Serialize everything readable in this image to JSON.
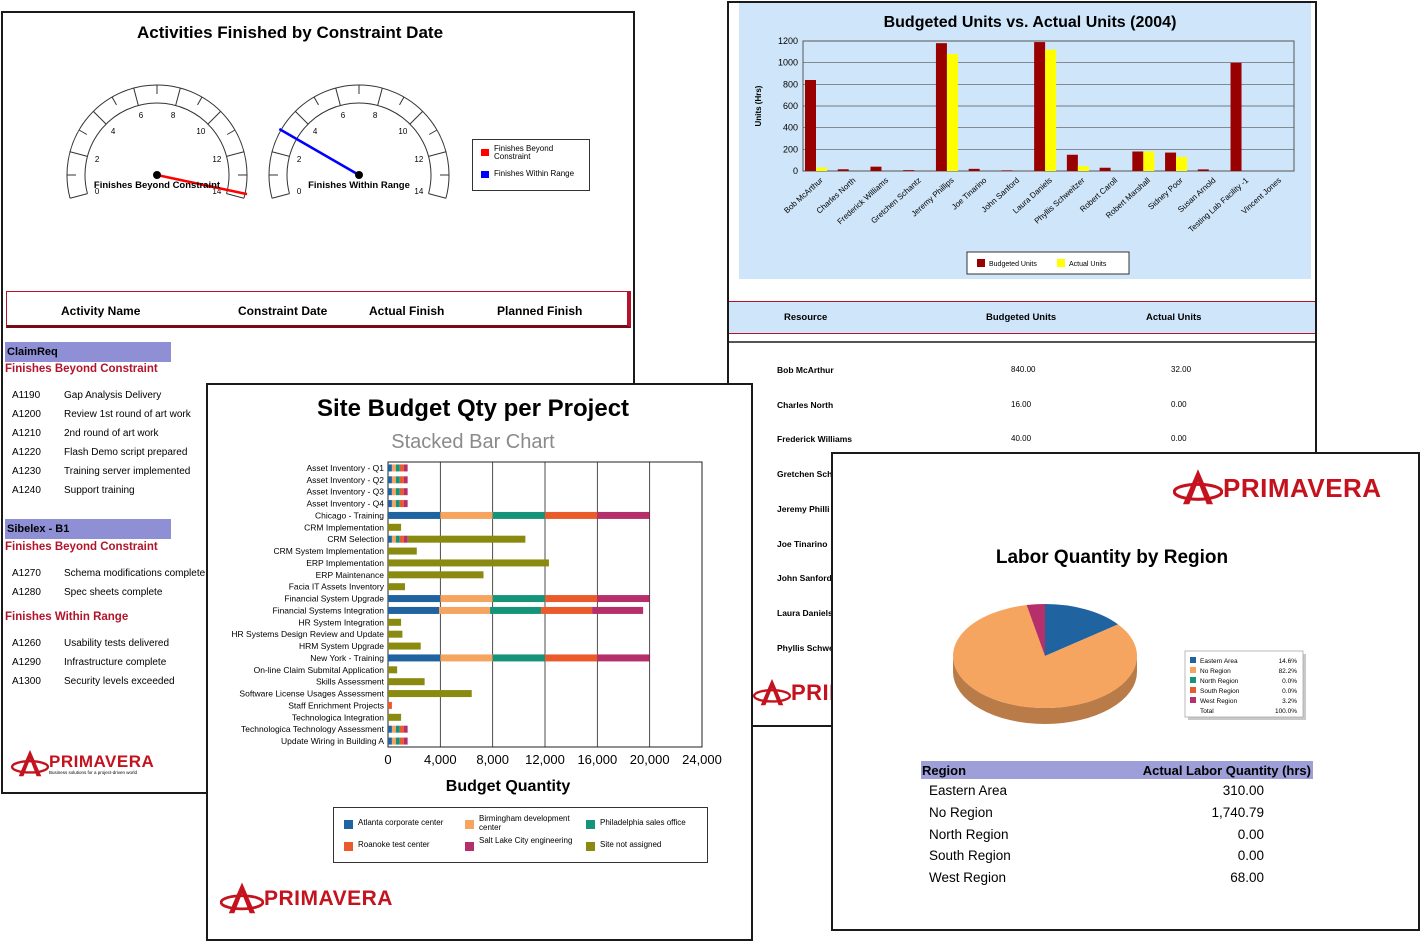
{
  "panel1": {
    "title": "Activities Finished by Constraint Date",
    "gauges": [
      {
        "label": "Finishes Beyond Constraint",
        "ticks": [
          "0",
          "2",
          "4",
          "6",
          "8",
          "10",
          "12",
          "14"
        ],
        "value": 13.8,
        "color": "#ff0000"
      },
      {
        "label": "Finishes Within Range",
        "ticks": [
          "0",
          "2",
          "4",
          "6",
          "8",
          "10",
          "12",
          "14"
        ],
        "value": 3,
        "color": "#0000ff"
      }
    ],
    "legend": [
      {
        "label": "Finishes Beyond Constraint",
        "color": "#ff0000"
      },
      {
        "label": "Finishes Within Range",
        "color": "#0000ff"
      }
    ],
    "headers": [
      "Activity Name",
      "Constraint Date",
      "Actual Finish",
      "Planned Finish"
    ],
    "groups": [
      {
        "name": "ClaimReq",
        "section": "Finishes Beyond Constraint",
        "rows": [
          [
            "A1190",
            "Gap Analysis Delivery"
          ],
          [
            "A1200",
            "Review 1st round of art work"
          ],
          [
            "A1210",
            "2nd round of art work"
          ],
          [
            "A1220",
            "Flash Demo script prepared"
          ],
          [
            "A1230",
            "Training server implemented"
          ],
          [
            "A1240",
            "Support training"
          ]
        ]
      },
      {
        "name": "Sibelex - B1",
        "section": "Finishes Beyond Constraint",
        "rows": [
          [
            "A1270",
            "Schema modifications complete"
          ],
          [
            "A1280",
            "Spec sheets complete"
          ]
        ],
        "section2": "Finishes Within Range",
        "rows2": [
          [
            "A1260",
            "Usability tests delivered"
          ],
          [
            "A1290",
            "Infrastructure complete"
          ],
          [
            "A1300",
            "Security levels exceeded"
          ]
        ]
      }
    ],
    "logo_word": "PRIMAVERA",
    "logo_tagline": "Business solutions for a project-driven world"
  },
  "panel2": {
    "headers": [
      "Resource",
      "Budgeted Units",
      "Actual Units"
    ],
    "rows": [
      [
        "Bob McArthur",
        "840.00",
        "32.00"
      ],
      [
        "Charles North",
        "16.00",
        "0.00"
      ],
      [
        "Frederick Williams",
        "40.00",
        "0.00"
      ],
      [
        "Gretchen Sch",
        "",
        ""
      ],
      [
        "Jeremy Philli",
        "",
        ""
      ],
      [
        "Joe Tinarino",
        "",
        ""
      ],
      [
        "John Sanford",
        "",
        ""
      ],
      [
        "Laura Daniels",
        "",
        ""
      ],
      [
        "Phyllis Schwe",
        "",
        ""
      ]
    ],
    "logo_word": "PRIM"
  },
  "panel3": {
    "logo_word": "PRIMAVERA",
    "region_headers": [
      "Region",
      "Actual Labor Quantity (hrs)"
    ],
    "regions": [
      [
        "Eastern Area",
        "310.00"
      ],
      [
        "No Region",
        "1,740.79"
      ],
      [
        "North Region",
        "0.00"
      ],
      [
        "South Region",
        "0.00"
      ],
      [
        "West Region",
        "68.00"
      ]
    ]
  },
  "panel4": {
    "logo_word": "PRIMAVERA"
  },
  "colors": {
    "brand_red": "#c4121e",
    "header_lightblue": "#cfe6fa",
    "group_purple": "#8f8fd6",
    "region_header": "#9e9ed8",
    "darkred": "#990000",
    "yellow": "#ffff00"
  },
  "chart_data": [
    {
      "type": "bar",
      "title": "Budgeted Units vs. Actual Units (2004)",
      "ylabel": "Units (Hrs)",
      "xlabel": "",
      "ylim": [
        0,
        1200
      ],
      "yticks": [
        0,
        200,
        400,
        600,
        800,
        1000,
        1200
      ],
      "grid": true,
      "legend_position": "bottom",
      "categories": [
        "Bob McArthur",
        "Charles North",
        "Frederick Williams",
        "Gretchen Schantz",
        "Jeremy Phillips",
        "Joe Tinarino",
        "John Sanford",
        "Laura Daniels",
        "Phyllis Schweitzer",
        "Robert Caroll",
        "Robert Marshall",
        "Sidney Poor",
        "Susan Arnold",
        "Testing Lab Facility -1",
        "Vincent Jones"
      ],
      "series": [
        {
          "name": "Budgeted Units",
          "color": "#990000",
          "values": [
            840,
            16,
            40,
            8,
            1180,
            20,
            6,
            1190,
            150,
            30,
            180,
            170,
            15,
            1000,
            0
          ]
        },
        {
          "name": "Actual Units",
          "color": "#ffff00",
          "values": [
            32,
            0,
            0,
            0,
            1080,
            0,
            0,
            1120,
            45,
            0,
            180,
            130,
            0,
            0,
            0
          ]
        }
      ]
    },
    {
      "type": "bar",
      "orientation": "horizontal",
      "stacked": true,
      "title": "Site Budget Qty per Project",
      "subtitle": "Stacked Bar Chart",
      "xlabel": "Budget Quantity",
      "ylabel": "",
      "xlim": [
        0,
        24000
      ],
      "xticks": [
        "0",
        "4,000",
        "8,000",
        "12,000",
        "16,000",
        "20,000",
        "24,000"
      ],
      "grid": true,
      "legend_position": "bottom",
      "categories": [
        "Asset Inventory - Q1",
        "Asset Inventory - Q2",
        "Asset Inventory - Q3",
        "Asset Inventory - Q4",
        "Chicago - Training",
        "CRM Implementation",
        "CRM Selection",
        "CRM System Implementation",
        "ERP Implementation",
        "ERP Maintenance",
        "Facia IT Assets Inventory",
        "Financial System Upgrade",
        "Financial Systems Integration",
        "HR System Integration",
        "HR Systems Design Review and Update",
        "HRM System Upgrade",
        "New York - Training",
        "On-line Claim Submital Application",
        "Skills Assessment",
        "Software License Usages Assessment",
        "Staff Enrichment Projects",
        "Technologica Integration",
        "Technologica Technology Assessment",
        "Update Wiring in Building A"
      ],
      "series": [
        {
          "name": "Atlanta corporate center",
          "color": "#1f63a0",
          "values": [
            300,
            300,
            300,
            300,
            4000,
            0,
            300,
            0,
            0,
            0,
            0,
            4000,
            3900,
            0,
            0,
            0,
            4000,
            0,
            0,
            0,
            0,
            0,
            300,
            300
          ]
        },
        {
          "name": "Birmingham development center",
          "color": "#f6a560",
          "values": [
            300,
            300,
            300,
            300,
            4000,
            0,
            300,
            0,
            0,
            0,
            0,
            4000,
            3900,
            0,
            0,
            0,
            4000,
            0,
            0,
            0,
            0,
            0,
            300,
            300
          ]
        },
        {
          "name": "Philadelphia sales office",
          "color": "#15947a",
          "values": [
            300,
            300,
            300,
            300,
            4000,
            0,
            300,
            0,
            0,
            0,
            0,
            4000,
            3900,
            0,
            0,
            0,
            4000,
            0,
            0,
            0,
            0,
            0,
            300,
            300
          ]
        },
        {
          "name": "Roanoke test center",
          "color": "#ea5a2a",
          "values": [
            300,
            300,
            300,
            300,
            4000,
            0,
            300,
            0,
            0,
            0,
            0,
            4000,
            3900,
            0,
            0,
            0,
            4000,
            0,
            0,
            0,
            300,
            0,
            300,
            300
          ]
        },
        {
          "name": "Salt Lake City engineering",
          "color": "#b52f6b",
          "values": [
            300,
            300,
            300,
            300,
            4000,
            0,
            300,
            0,
            0,
            0,
            0,
            4000,
            3900,
            0,
            0,
            0,
            4000,
            0,
            0,
            0,
            0,
            0,
            300,
            300
          ]
        },
        {
          "name": "Site not assigned",
          "color": "#8b8a10",
          "values": [
            0,
            0,
            0,
            0,
            0,
            1000,
            9000,
            2200,
            12300,
            7300,
            1300,
            0,
            0,
            1000,
            1100,
            2500,
            0,
            700,
            2800,
            6400,
            0,
            1000,
            0,
            0
          ]
        }
      ]
    },
    {
      "type": "pie",
      "title": "Labor Quantity by Region",
      "legend_position": "right",
      "slices": [
        {
          "label": "Eastern Area",
          "value": 14.6,
          "display": "14.6%",
          "color": "#1f63a0"
        },
        {
          "label": "No Region",
          "value": 82.2,
          "display": "82.2%",
          "color": "#f6a560"
        },
        {
          "label": "North Region",
          "value": 0.0,
          "display": "0.0%",
          "color": "#15947a"
        },
        {
          "label": "South Region",
          "value": 0.0,
          "display": "0.0%",
          "color": "#ea5a2a"
        },
        {
          "label": "West Region",
          "value": 3.2,
          "display": "3.2%",
          "color": "#b52f6b"
        }
      ],
      "total_label": "Total",
      "total_display": "100.0%"
    }
  ]
}
